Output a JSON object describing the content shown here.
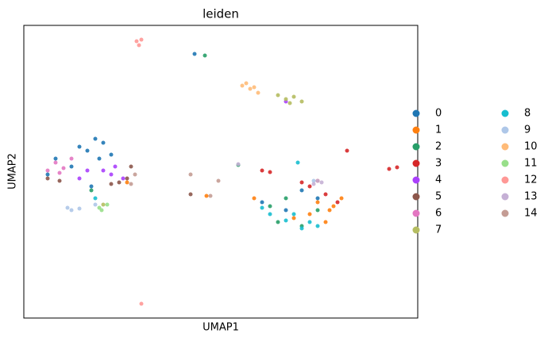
{
  "chart_data": {
    "type": "scatter",
    "title": "leiden",
    "x_label": "UMAP1",
    "y_label": "UMAP2",
    "xlim": [
      0,
      496
    ],
    "ylim": [
      0,
      369
    ],
    "series": [
      {
        "name": "0",
        "color": "#1f77b4",
        "x": [
          90,
          100,
          80,
          110,
          95,
          70,
          60,
          40,
          30,
          85,
          300,
          330,
          370,
          350,
          215
        ],
        "y": [
          226,
          221,
          211,
          206,
          201,
          216,
          191,
          201,
          181,
          166,
          146,
          136,
          151,
          161,
          333
        ]
      },
      {
        "name": "1",
        "color": "#ff7f0e",
        "x": [
          370,
          390,
          360,
          380,
          340,
          400,
          290,
          230,
          130,
          385
        ],
        "y": [
          146,
          141,
          131,
          121,
          126,
          151,
          151,
          154,
          171,
          136
        ]
      },
      {
        "name": "2",
        "color": "#279e68",
        "x": [
          310,
          330,
          320,
          350,
          370,
          85,
          270,
          228
        ],
        "y": [
          141,
          151,
          121,
          116,
          136,
          161,
          193,
          331
        ]
      },
      {
        "name": "3",
        "color": "#d62728",
        "x": [
          360,
          380,
          370,
          350,
          395,
          460,
          470,
          310,
          300,
          407
        ],
        "y": [
          166,
          156,
          173,
          171,
          146,
          188,
          190,
          184,
          186,
          211
        ]
      },
      {
        "name": "4",
        "color": "#aa40fc",
        "x": [
          100,
          115,
          80,
          125,
          70,
          110,
          330
        ],
        "y": [
          186,
          191,
          186,
          176,
          176,
          181,
          273
        ]
      },
      {
        "name": "5",
        "color": "#8c564b",
        "x": [
          120,
          130,
          110,
          45,
          30,
          135,
          210
        ],
        "y": [
          171,
          176,
          169,
          173,
          176,
          191,
          156
        ]
      },
      {
        "name": "6",
        "color": "#e377c2",
        "x": [
          40,
          50,
          30,
          60,
          45
        ],
        "y": [
          196,
          189,
          186,
          201,
          183
        ]
      },
      {
        "name": "7",
        "color": "#b5bd61",
        "x": [
          330,
          340,
          350,
          320,
          335,
          100
        ],
        "y": [
          276,
          279,
          273,
          281,
          271,
          143
        ]
      },
      {
        "name": "8",
        "color": "#17becf",
        "x": [
          310,
          330,
          350,
          370,
          300,
          340,
          360,
          345,
          90
        ],
        "y": [
          131,
          123,
          113,
          116,
          139,
          131,
          121,
          196,
          151
        ]
      },
      {
        "name": "9",
        "color": "#aec7e8",
        "x": [
          60,
          70,
          90,
          55,
          365
        ],
        "y": [
          136,
          138,
          143,
          139,
          173
        ]
      },
      {
        "name": "10",
        "color": "#ffbb78",
        "x": [
          275,
          285,
          295,
          280,
          290
        ],
        "y": [
          293,
          289,
          284,
          296,
          291
        ]
      },
      {
        "name": "11",
        "color": "#98df8a",
        "x": [
          98,
          105,
          95
        ],
        "y": [
          136,
          143,
          139
        ]
      },
      {
        "name": "12",
        "color": "#ff9896",
        "x": [
          142,
          148,
          145,
          148
        ],
        "y": [
          349,
          351,
          344,
          18
        ]
      },
      {
        "name": "13",
        "color": "#c5b0d5",
        "x": [
          370,
          365,
          270,
          375
        ],
        "y": [
          173,
          169,
          194,
          171
        ]
      },
      {
        "name": "14",
        "color": "#c49c94",
        "x": [
          140,
          135,
          210,
          235,
          245
        ],
        "y": [
          181,
          169,
          181,
          154,
          173
        ]
      }
    ]
  }
}
